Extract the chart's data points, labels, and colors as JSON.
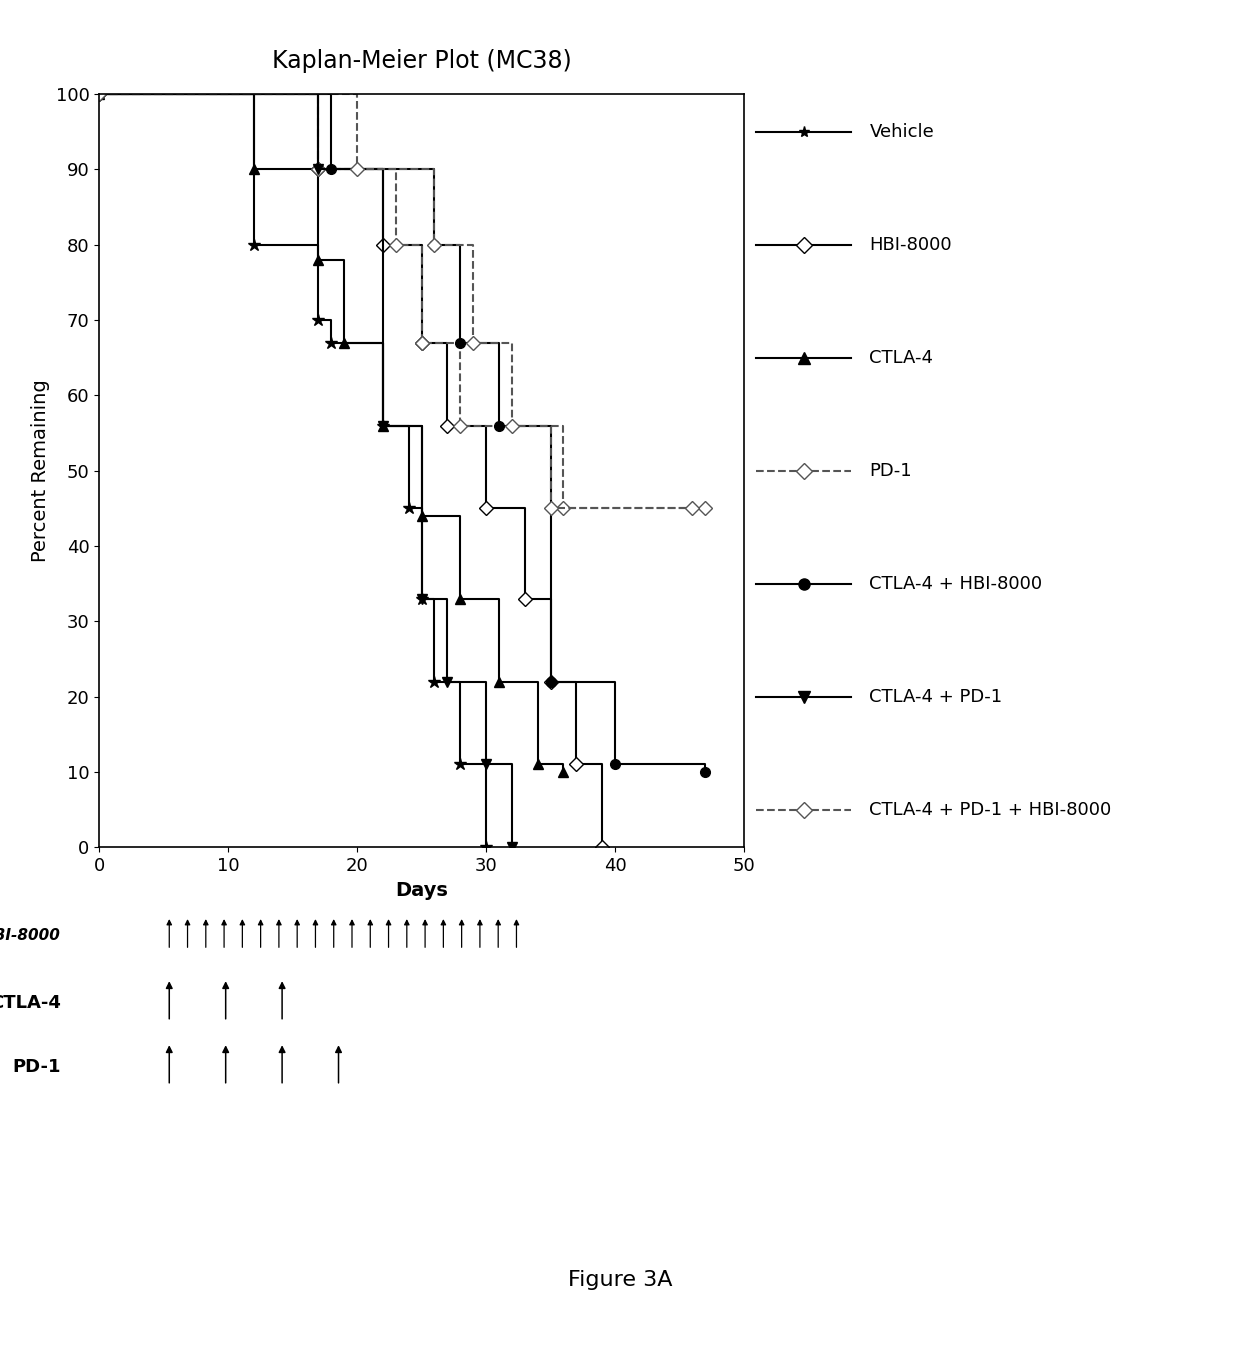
{
  "title": "Kaplan-Meier Plot (MC38)",
  "xlabel": "Days",
  "ylabel": "Percent Remaining",
  "xlim": [
    0,
    50
  ],
  "ylim": [
    0,
    100
  ],
  "xticks": [
    0,
    10,
    20,
    30,
    40,
    50
  ],
  "yticks": [
    0,
    10,
    20,
    30,
    40,
    50,
    60,
    70,
    80,
    90,
    100
  ],
  "figure_caption": "Figure 3A",
  "series": [
    {
      "label": "Vehicle",
      "color": "#000000",
      "linestyle": "solid",
      "marker": "*",
      "markersize": 9,
      "markerfacecolor": "#000000",
      "steps": [
        [
          0,
          100
        ],
        [
          12,
          80
        ],
        [
          17,
          70
        ],
        [
          18,
          67
        ],
        [
          22,
          56
        ],
        [
          24,
          45
        ],
        [
          25,
          33
        ],
        [
          26,
          22
        ],
        [
          28,
          11
        ],
        [
          30,
          0
        ]
      ]
    },
    {
      "label": "HBI-8000",
      "color": "#000000",
      "linestyle": "solid",
      "marker": "D",
      "markersize": 7,
      "markerfacecolor": "white",
      "steps": [
        [
          0,
          100
        ],
        [
          17,
          90
        ],
        [
          22,
          80
        ],
        [
          25,
          67
        ],
        [
          27,
          56
        ],
        [
          30,
          45
        ],
        [
          33,
          33
        ],
        [
          35,
          22
        ],
        [
          37,
          11
        ],
        [
          39,
          0
        ]
      ]
    },
    {
      "label": "CTLA-4",
      "color": "#000000",
      "linestyle": "solid",
      "marker": "^",
      "markersize": 7,
      "markerfacecolor": "#000000",
      "steps": [
        [
          0,
          100
        ],
        [
          12,
          90
        ],
        [
          17,
          78
        ],
        [
          19,
          67
        ],
        [
          22,
          56
        ],
        [
          25,
          44
        ],
        [
          28,
          33
        ],
        [
          31,
          22
        ],
        [
          34,
          11
        ],
        [
          36,
          10
        ]
      ]
    },
    {
      "label": "PD-1",
      "color": "#555555",
      "linestyle": "dashed",
      "marker": "D",
      "markersize": 7,
      "markerfacecolor": "white",
      "steps": [
        [
          0,
          100
        ],
        [
          17,
          90
        ],
        [
          23,
          80
        ],
        [
          25,
          67
        ],
        [
          28,
          56
        ],
        [
          36,
          45
        ],
        [
          47,
          45
        ]
      ]
    },
    {
      "label": "CTLA-4 + HBI-8000",
      "color": "#000000",
      "linestyle": "solid",
      "marker": "o",
      "markersize": 7,
      "markerfacecolor": "#000000",
      "steps": [
        [
          0,
          100
        ],
        [
          18,
          90
        ],
        [
          26,
          80
        ],
        [
          28,
          67
        ],
        [
          31,
          56
        ],
        [
          35,
          22
        ],
        [
          40,
          11
        ],
        [
          47,
          10
        ]
      ]
    },
    {
      "label": "CTLA-4 + PD-1",
      "color": "#000000",
      "linestyle": "solid",
      "marker": "v",
      "markersize": 7,
      "markerfacecolor": "#000000",
      "steps": [
        [
          0,
          100
        ],
        [
          17,
          90
        ],
        [
          22,
          56
        ],
        [
          25,
          33
        ],
        [
          27,
          22
        ],
        [
          30,
          11
        ],
        [
          32,
          0
        ]
      ]
    },
    {
      "label": "CTLA-4 + PD-1 + HBI-8000",
      "color": "#555555",
      "linestyle": "dashed",
      "marker": "D",
      "markersize": 7,
      "markerfacecolor": "white",
      "steps": [
        [
          0,
          100
        ],
        [
          20,
          90
        ],
        [
          26,
          80
        ],
        [
          29,
          67
        ],
        [
          32,
          56
        ],
        [
          35,
          45
        ],
        [
          46,
          45
        ]
      ]
    }
  ],
  "legend_entries": [
    {
      "label": "Vehicle",
      "marker": "*",
      "linestyle": "solid",
      "color": "#000000",
      "mfc": "#000000"
    },
    {
      "label": "HBI-8000",
      "marker": "D",
      "linestyle": "solid",
      "color": "#000000",
      "mfc": "white"
    },
    {
      "label": "CTLA-4",
      "marker": "^",
      "linestyle": "solid",
      "color": "#000000",
      "mfc": "#000000"
    },
    {
      "label": "PD-1",
      "marker": "D",
      "linestyle": "dashed",
      "color": "#555555",
      "mfc": "white"
    },
    {
      "label": "CTLA-4 + HBI-8000",
      "marker": "o",
      "linestyle": "solid",
      "color": "#000000",
      "mfc": "#000000"
    },
    {
      "label": "CTLA-4 + PD-1",
      "marker": "v",
      "linestyle": "solid",
      "color": "#000000",
      "mfc": "#000000"
    },
    {
      "label": "CTLA-4 + PD-1 + HBI-8000",
      "marker": "D",
      "linestyle": "dashed",
      "color": "#555555",
      "mfc": "white"
    }
  ],
  "background_color": "#ffffff",
  "title_fontsize": 17,
  "axis_label_fontsize": 14,
  "tick_fontsize": 13,
  "legend_fontsize": 13
}
